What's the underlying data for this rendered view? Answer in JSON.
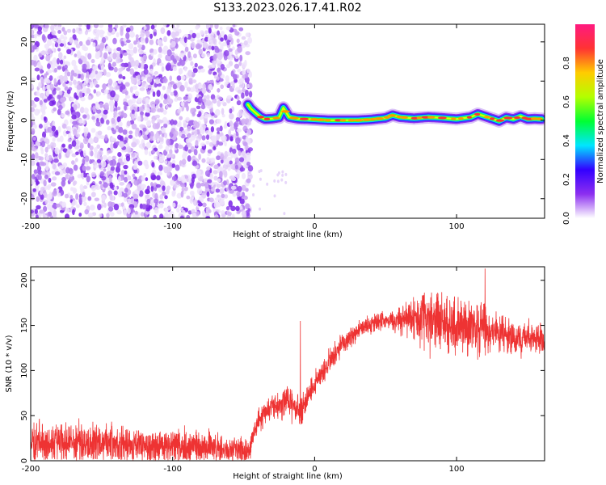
{
  "title": "S133.2023.026.17.41.R02",
  "chart_data": [
    {
      "type": "heatmap",
      "xlabel": "Height of straight line (km)",
      "ylabel": "Frequency (Hz)",
      "xlim": [
        -200,
        162
      ],
      "ylim": [
        -25,
        24.5
      ],
      "xticks": [
        "-200",
        "-100",
        "0",
        "100"
      ],
      "yticks": [
        "-20",
        "-10",
        "0",
        "10",
        "20"
      ],
      "noise_region_km": [
        -200,
        -45
      ],
      "signal_trace": {
        "x": [
          -47,
          -45,
          -42,
          -38,
          -35,
          -30,
          -25,
          -22,
          -18,
          -12,
          -5,
          0,
          10,
          20,
          30,
          40,
          50,
          55,
          60,
          70,
          80,
          90,
          100,
          110,
          115,
          120,
          125,
          130,
          135,
          140,
          145,
          150,
          155,
          160
        ],
        "y": [
          4,
          3,
          2,
          0.8,
          0.3,
          0.4,
          0.7,
          3.2,
          0.8,
          0.4,
          0.3,
          0.2,
          0,
          0,
          0,
          0.2,
          0.6,
          1.3,
          0.8,
          0.5,
          0.8,
          0.6,
          0.3,
          0.8,
          1.6,
          1.0,
          0.4,
          -0.2,
          0.7,
          0.3,
          1.0,
          0.3,
          0.4,
          0.3
        ]
      },
      "grid": false,
      "colorbar": {
        "label": "Normalized spectral amplitude",
        "ticks": [
          "0.0",
          "0.2",
          "0.4",
          "0.6",
          "0.8"
        ],
        "range": [
          0,
          1
        ],
        "colors": [
          "#ffffff",
          "#8c2ff0",
          "#3300ff",
          "#00e6ff",
          "#00ff33",
          "#b3ff00",
          "#ffcc00",
          "#ff3333",
          "#ff1a80"
        ]
      }
    },
    {
      "type": "line",
      "xlabel": "Height of straight line (km)",
      "ylabel": "SNR (10 * v/v)",
      "xlim": [
        -200,
        162
      ],
      "ylim": [
        0,
        215
      ],
      "xticks": [
        "-200",
        "-100",
        "0",
        "100"
      ],
      "yticks": [
        "0",
        "50",
        "100",
        "150",
        "200"
      ],
      "color": "#ee3333",
      "grid": false,
      "envelope": {
        "x": [
          -200,
          -160,
          -120,
          -80,
          -47,
          -45,
          -40,
          -35,
          -30,
          -25,
          -20,
          -15,
          -10,
          -5,
          0,
          10,
          20,
          30,
          40,
          50,
          60,
          70,
          80,
          90,
          100,
          110,
          120,
          130,
          140,
          150,
          162
        ],
        "mean": [
          22,
          20,
          18,
          16,
          10,
          18,
          45,
          52,
          62,
          60,
          68,
          62,
          55,
          70,
          85,
          110,
          130,
          145,
          152,
          156,
          158,
          158,
          157,
          155,
          150,
          147,
          145,
          142,
          138,
          136,
          134
        ],
        "spread": [
          18,
          18,
          17,
          16,
          12,
          10,
          10,
          12,
          12,
          14,
          14,
          14,
          12,
          12,
          10,
          10,
          10,
          8,
          8,
          8,
          14,
          20,
          26,
          28,
          28,
          25,
          22,
          18,
          16,
          14,
          12
        ]
      },
      "spikes": [
        {
          "x": -10,
          "y": 155
        },
        {
          "x": 120,
          "y": 213
        }
      ]
    }
  ]
}
